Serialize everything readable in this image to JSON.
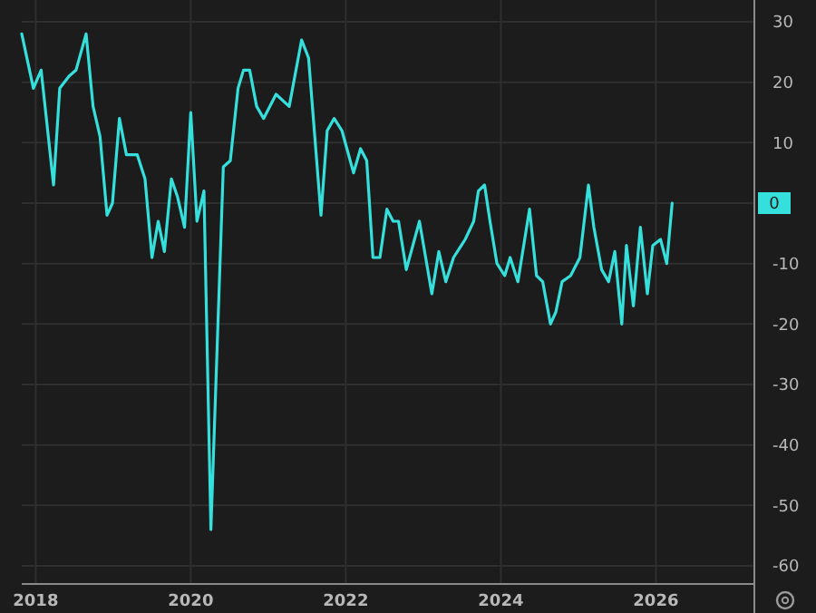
{
  "chart_data": {
    "type": "line",
    "x": [
      2017.82,
      2017.97,
      2018.07,
      2018.23,
      2018.31,
      2018.43,
      2018.52,
      2018.65,
      2018.74,
      2018.83,
      2018.92,
      2018.99,
      2019.08,
      2019.17,
      2019.31,
      2019.41,
      2019.5,
      2019.58,
      2019.66,
      2019.75,
      2019.83,
      2019.92,
      2020.0,
      2020.08,
      2020.17,
      2020.26,
      2020.42,
      2020.51,
      2020.61,
      2020.68,
      2020.76,
      2020.85,
      2020.94,
      2021.1,
      2021.27,
      2021.43,
      2021.52,
      2021.68,
      2021.76,
      2021.85,
      2021.95,
      2022.1,
      2022.19,
      2022.27,
      2022.35,
      2022.44,
      2022.53,
      2022.61,
      2022.68,
      2022.78,
      2022.95,
      2023.11,
      2023.2,
      2023.29,
      2023.39,
      2023.54,
      2023.65,
      2023.71,
      2023.79,
      2023.86,
      2023.95,
      2024.05,
      2024.12,
      2024.22,
      2024.37,
      2024.46,
      2024.54,
      2024.64,
      2024.71,
      2024.79,
      2024.9,
      2025.02,
      2025.13,
      2025.2,
      2025.3,
      2025.39,
      2025.47,
      2025.56,
      2025.62,
      2025.71,
      2025.8,
      2025.89,
      2025.96,
      2026.06,
      2026.14,
      2026.21
    ],
    "series": [
      {
        "color": "#35e0dc",
        "values": [
          28,
          19,
          22,
          3,
          19,
          21,
          22,
          28,
          16,
          11,
          -2,
          0,
          14,
          8,
          8,
          4,
          -9,
          -3,
          -8,
          4,
          1,
          -4,
          15,
          -3,
          2,
          -54,
          6,
          7,
          19,
          22,
          22,
          16,
          14,
          18,
          16,
          27,
          24,
          -2,
          12,
          14,
          12,
          5,
          9,
          7,
          -9,
          -9,
          -1,
          -3,
          -3,
          -11,
          -3,
          -15,
          -8,
          -13,
          -9,
          -6,
          -3,
          2,
          3,
          -3,
          -10,
          -12,
          -9,
          -13,
          -1,
          -12,
          -13,
          -20,
          -18,
          -13,
          -12,
          -9,
          3,
          -4,
          -11,
          -13,
          -8,
          -20,
          -7,
          -17,
          -4,
          -15,
          -7,
          -6,
          -10,
          0
        ]
      }
    ],
    "xlim": [
      2017.82,
      2027.27
    ],
    "xticks": [
      2018,
      2020,
      2022,
      2024,
      2026
    ],
    "ylim": [
      -63,
      33.6
    ],
    "yticks": [
      30,
      20,
      10,
      0,
      -10,
      -20,
      -30,
      -40,
      -50,
      -60
    ],
    "grid": true,
    "marker": "none",
    "line_style": "solid"
  }
}
